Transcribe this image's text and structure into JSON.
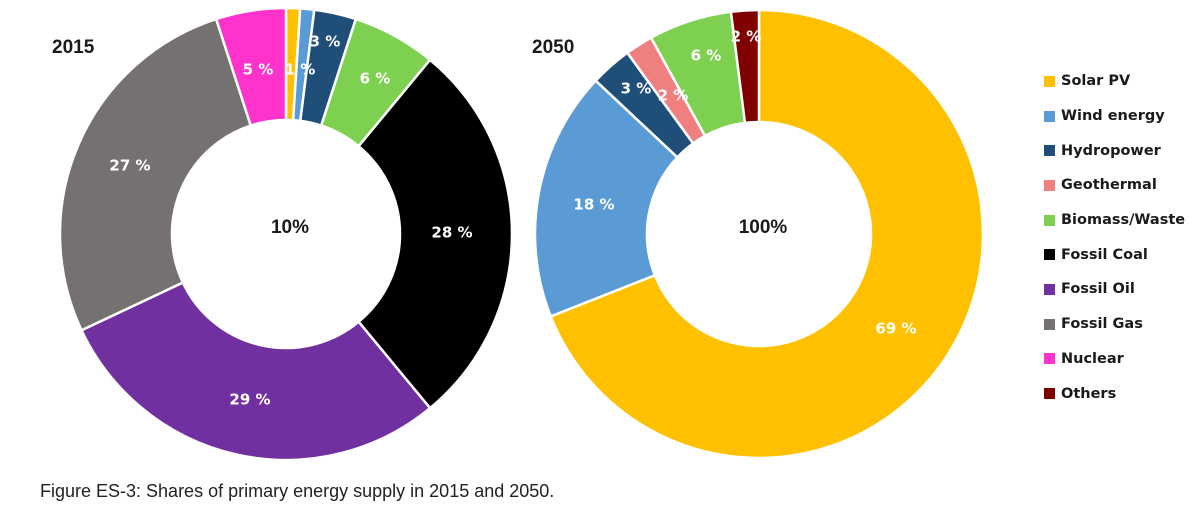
{
  "chart_data": [
    {
      "type": "pie",
      "title": "2015",
      "center_label": "10%",
      "slices": [
        {
          "name": "Solar PV",
          "value": 1,
          "label": "1 %"
        },
        {
          "name": "Wind energy",
          "value": 1,
          "label": ""
        },
        {
          "name": "Hydropower",
          "value": 3,
          "label": "3 %"
        },
        {
          "name": "Biomass/Waste",
          "value": 6,
          "label": "6 %"
        },
        {
          "name": "Fossil Coal",
          "value": 28,
          "label": "28 %"
        },
        {
          "name": "Fossil Oil",
          "value": 29,
          "label": "29 %"
        },
        {
          "name": "Fossil Gas",
          "value": 27,
          "label": "27 %"
        },
        {
          "name": "Nuclear",
          "value": 5,
          "label": "5 %"
        }
      ]
    },
    {
      "type": "pie",
      "title": "2050",
      "center_label": "100%",
      "slices": [
        {
          "name": "Solar PV",
          "value": 69,
          "label": "69 %"
        },
        {
          "name": "Wind energy",
          "value": 18,
          "label": "18 %"
        },
        {
          "name": "Hydropower",
          "value": 3,
          "label": "3 %"
        },
        {
          "name": "Geothermal",
          "value": 2,
          "label": "2 %"
        },
        {
          "name": "Biomass/Waste",
          "value": 6,
          "label": "6 %"
        },
        {
          "name": "Others",
          "value": 2,
          "label": "2 %"
        }
      ]
    }
  ],
  "legend": {
    "placement": "right",
    "items": [
      {
        "name": "Solar PV",
        "color": "#ffc000"
      },
      {
        "name": "Wind energy",
        "color": "#5b9bd5"
      },
      {
        "name": "Hydropower",
        "color": "#1f4e79"
      },
      {
        "name": "Geothermal",
        "color": "#f08080"
      },
      {
        "name": "Biomass/Waste",
        "color": "#7ed050"
      },
      {
        "name": "Fossil Coal",
        "color": "#000000"
      },
      {
        "name": "Fossil Oil",
        "color": "#7030a0"
      },
      {
        "name": "Fossil Gas",
        "color": "#767171"
      },
      {
        "name": "Nuclear",
        "color": "#ff33cc"
      },
      {
        "name": "Others",
        "color": "#800000"
      }
    ]
  },
  "caption": "Figure ES-3: Shares of primary energy supply in 2015 and 2050."
}
